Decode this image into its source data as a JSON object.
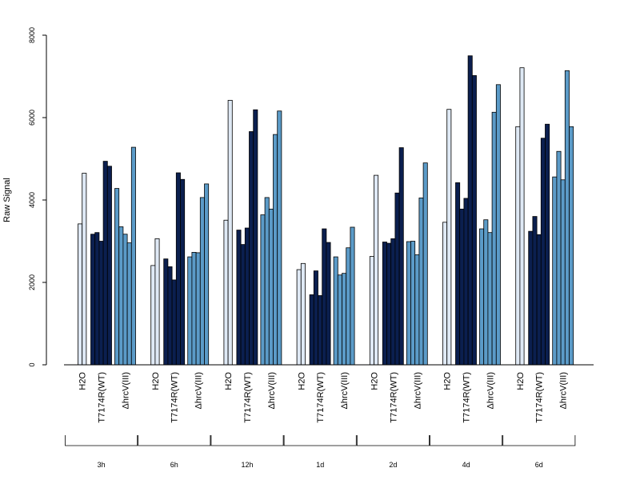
{
  "chart_data": {
    "type": "bar",
    "ylabel": "Raw Signal",
    "ylim": [
      0,
      8000
    ],
    "yticks": [
      0,
      2000,
      4000,
      6000,
      8000
    ],
    "groups": [
      "3h",
      "6h",
      "12h",
      "1d",
      "2d",
      "4d",
      "6d"
    ],
    "conditions": [
      "H2O",
      "T7174R(WT)",
      "ΔhrcV(III)"
    ],
    "condition_colors": [
      "#dfe9f5",
      "#0b1f4f",
      "#5b9bc8"
    ],
    "values": [
      [
        [
          3420,
          4650
        ],
        [
          3170,
          3210,
          3000,
          4940,
          4820
        ],
        [
          4280,
          3350,
          3170,
          2960,
          5280
        ]
      ],
      [
        [
          2410,
          3060
        ],
        [
          2570,
          2380,
          2060,
          4660,
          4500
        ],
        [
          2620,
          2730,
          2720,
          4060,
          4390
        ]
      ],
      [
        [
          3510,
          6420
        ],
        [
          3270,
          2920,
          3320,
          5660,
          6190
        ],
        [
          3640,
          4060,
          3780,
          5590,
          6160
        ]
      ],
      [
        [
          2310,
          2460
        ],
        [
          1700,
          2280,
          1680,
          3300,
          2970
        ],
        [
          2620,
          2180,
          2220,
          2840,
          3340
        ]
      ],
      [
        [
          2630,
          4600
        ],
        [
          2980,
          2950,
          3060,
          4170,
          5270
        ],
        [
          2990,
          3000,
          2670,
          4050,
          4900
        ]
      ],
      [
        [
          3460,
          6200
        ],
        [
          4420,
          3780,
          4040,
          7500,
          7020
        ],
        [
          3300,
          3520,
          3210,
          6130,
          6800
        ]
      ],
      [
        [
          5780,
          7210
        ],
        [
          3240,
          3600,
          3160,
          5500,
          5840
        ],
        [
          4560,
          5180,
          4490,
          7140,
          5780
        ]
      ]
    ]
  }
}
